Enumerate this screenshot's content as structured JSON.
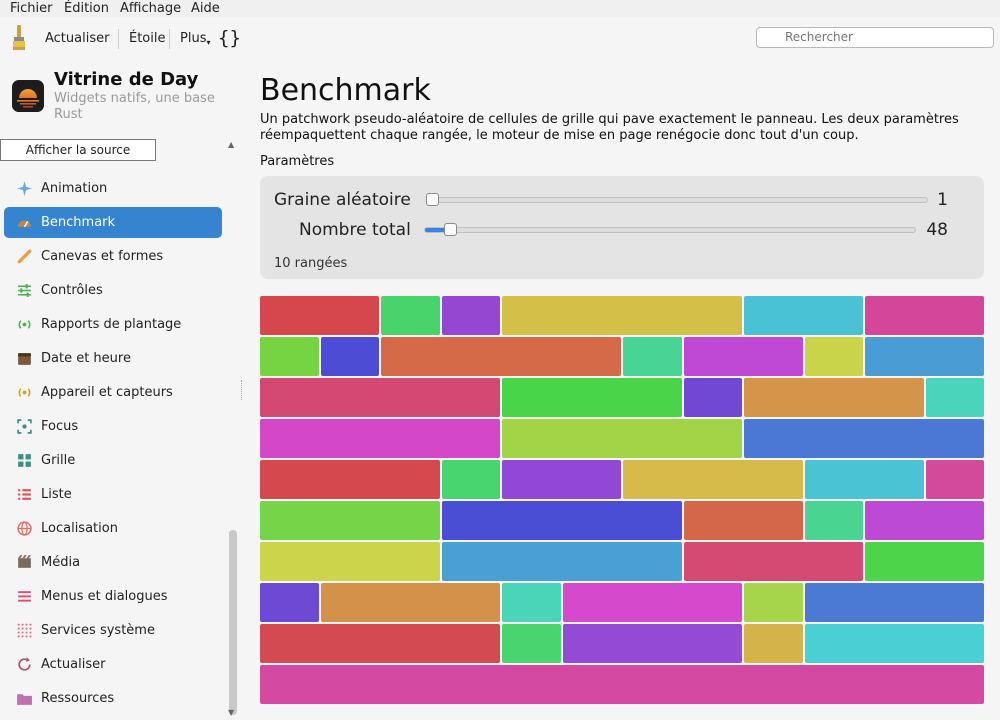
{
  "menubar": [
    "Fichier",
    "Édition",
    "Affichage",
    "Aide"
  ],
  "toolbar": {
    "refresh": "Actualiser",
    "star": "Étoile",
    "more": "Plus",
    "braces": "{}",
    "search_placeholder": "Rechercher"
  },
  "app": {
    "title": "Vitrine de Day",
    "subtitle": "Widgets natifs, une base Rust"
  },
  "tooltip": "Afficher la source",
  "nav": [
    {
      "label": "Animation",
      "icon": "sparkle-icon",
      "color": "#6fa8dc"
    },
    {
      "label": "Benchmark",
      "icon": "speedometer-icon",
      "color": "#c8823c",
      "active": true
    },
    {
      "label": "Canevas et formes",
      "icon": "brush-icon",
      "color": "#e8a040"
    },
    {
      "label": "Contrôles",
      "icon": "sliders-icon",
      "color": "#4caf50"
    },
    {
      "label": "Rapports de plantage",
      "icon": "broadcast-icon",
      "color": "#4caf50"
    },
    {
      "label": "Date et heure",
      "icon": "calendar-icon",
      "color": "#7a5a3a"
    },
    {
      "label": "Appareil et capteurs",
      "icon": "sensor-icon",
      "color": "#d4a017"
    },
    {
      "label": "Focus",
      "icon": "focus-icon",
      "color": "#3a8f86"
    },
    {
      "label": "Grille",
      "icon": "grid-icon",
      "color": "#3a8f86"
    },
    {
      "label": "Liste",
      "icon": "list-icon",
      "color": "#e05050"
    },
    {
      "label": "Localisation",
      "icon": "globe-icon",
      "color": "#e07060"
    },
    {
      "label": "Média",
      "icon": "film-icon",
      "color": "#7a6a5a"
    },
    {
      "label": "Menus et dialogues",
      "icon": "menu-icon",
      "color": "#e05070"
    },
    {
      "label": "Services système",
      "icon": "dots-grid-icon",
      "color": "#e07090"
    },
    {
      "label": "Actualiser",
      "icon": "refresh-icon",
      "color": "#b05070"
    },
    {
      "label": "Ressources",
      "icon": "folder-icon",
      "color": "#c070b0"
    }
  ],
  "main": {
    "title": "Benchmark",
    "description": "Un patchwork pseudo-aléatoire de cellules de grille qui pave exactement le panneau. Les deux paramètres réempaquettent chaque rangée, le moteur de mise en page renégocie donc tout d'un coup.",
    "section": "Paramètres",
    "seed_label": "Graine aléatoire",
    "seed_value": "1",
    "seed_fraction": 0.0,
    "total_label": "Nombre total",
    "total_value": "48",
    "total_fraction": 0.03,
    "rows_text": "10 rangées"
  },
  "patchwork": [
    [
      [
        2,
        "#d5474c"
      ],
      [
        1,
        "#48d46b"
      ],
      [
        1,
        "#9547d1"
      ],
      [
        4,
        "#d4bf49"
      ],
      [
        2,
        "#48c2d4"
      ],
      [
        2,
        "#d44798"
      ]
    ],
    [
      [
        1,
        "#76d443"
      ],
      [
        1,
        "#4c4cd4"
      ],
      [
        4,
        "#d56a48"
      ],
      [
        1,
        "#48d495"
      ],
      [
        2,
        "#bf48d4"
      ],
      [
        1,
        "#c9d44a"
      ],
      [
        2,
        "#4a9cd4"
      ]
    ],
    [
      [
        4,
        "#d44874"
      ],
      [
        3,
        "#4ad44a"
      ],
      [
        1,
        "#7048d4"
      ],
      [
        3,
        "#d4944a"
      ],
      [
        1,
        "#4ad4bb"
      ]
    ],
    [
      [
        4,
        "#d448c8"
      ],
      [
        4,
        "#a2d448"
      ],
      [
        4,
        "#4a78d4"
      ]
    ],
    [
      [
        3,
        "#d4484e"
      ],
      [
        1,
        "#48d46e"
      ],
      [
        2,
        "#9248d4"
      ],
      [
        3,
        "#d4bb4a"
      ],
      [
        2,
        "#4ac4d4"
      ],
      [
        1,
        "#d44a9b"
      ]
    ],
    [
      [
        3,
        "#76d448"
      ],
      [
        4,
        "#4a4ed4"
      ],
      [
        2,
        "#d4674a"
      ],
      [
        1,
        "#4ad492"
      ],
      [
        2,
        "#bc4ad4"
      ]
    ],
    [
      [
        3,
        "#ccd44a"
      ],
      [
        4,
        "#4aa0d4"
      ],
      [
        3,
        "#d44a72"
      ],
      [
        2,
        "#4ed44a"
      ]
    ],
    [
      [
        1,
        "#6e4ad4"
      ],
      [
        3,
        "#d4914a"
      ],
      [
        1,
        "#4ad4b8"
      ],
      [
        3,
        "#d44acc"
      ],
      [
        1,
        "#a6d44a"
      ],
      [
        3,
        "#4a7ad4"
      ]
    ],
    [
      [
        4,
        "#d44a52"
      ],
      [
        1,
        "#4ad470"
      ],
      [
        3,
        "#944ad4"
      ],
      [
        1,
        "#d4b44a"
      ],
      [
        3,
        "#4ad0d4"
      ]
    ],
    [
      [
        12,
        "#d44aa2"
      ]
    ]
  ]
}
